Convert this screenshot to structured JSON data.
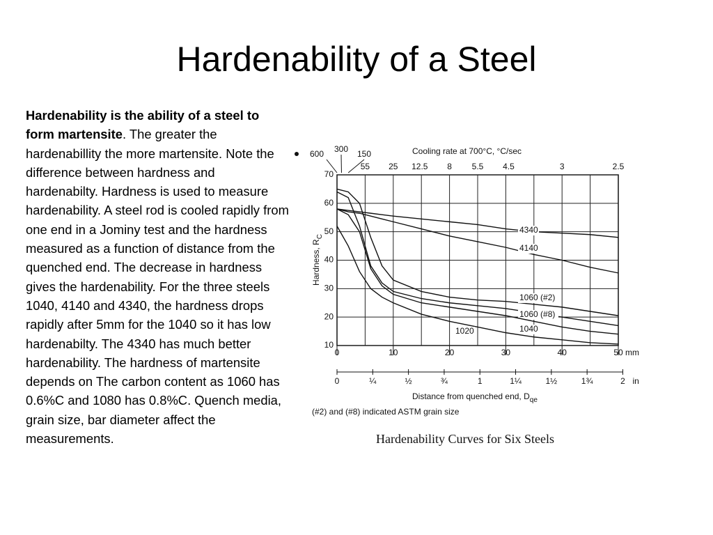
{
  "title": "Hardenability of a Steel",
  "body": {
    "bold": "Hardenability is the ability of a steel to form martensite",
    "paragraphs": [
      ". The greater the hardenabillity the more martensite. Note the difference between hardness and hardenabilty. Hardness is used to measure hardenability. A steel rod is cooled rapidly from one end in a Jominy test and the hardness measured as a function of distance from the quenched end. The decrease in hardness gives the hardenability. For the three steels",
      "1040, 4140 and 4340, the hardness drops rapidly after 5mm for the 1040 so it has low hardenabilty. The 4340 has much better hardenability. The hardness of martensite depends on The carbon content as 1060 has 0.6%C and 1080 has 0.8%C. Quench media, grain size, bar diameter affect  the measurements."
    ]
  },
  "chart_data": {
    "type": "line",
    "caption": "Hardenability Curves for Six Steels",
    "note": "(#2) and (#8) indicated ASTM grain size",
    "y_label": "Hardness, R",
    "y_label_sub": "C",
    "x_label": "Distance from quenched end, D",
    "x_label_sub": "qe",
    "x_unit": "mm",
    "x": [
      0,
      2,
      4,
      6,
      8,
      10,
      15,
      20,
      25,
      30,
      35,
      40,
      45,
      50
    ],
    "series": [
      {
        "name": "4340",
        "color": "#111111",
        "values": [
          58,
          57.5,
          57,
          56.5,
          56,
          55.5,
          54.5,
          53.5,
          52.5,
          51,
          50,
          49.5,
          49,
          48
        ]
      },
      {
        "name": "4140",
        "color": "#111111",
        "values": [
          58,
          57,
          56.5,
          55.5,
          54.5,
          53.5,
          51,
          48.5,
          46.5,
          44.5,
          42,
          40,
          37.5,
          35.5
        ]
      },
      {
        "name": "1060 (#2)",
        "color": "#111111",
        "values": [
          65,
          64,
          60,
          48,
          38,
          33,
          29,
          27,
          26,
          25.5,
          24.5,
          23.5,
          22,
          20.5
        ]
      },
      {
        "name": "1060 (#8)",
        "color": "#111111",
        "values": [
          64,
          62,
          52,
          38,
          32,
          29,
          26.5,
          25,
          24,
          23,
          21.5,
          20,
          18.5,
          17
        ]
      },
      {
        "name": "1040",
        "color": "#111111",
        "values": [
          58,
          56,
          50,
          37,
          31,
          28,
          25,
          23.5,
          22,
          20.5,
          18.5,
          16.5,
          15,
          14
        ]
      },
      {
        "name": "1020",
        "color": "#111111",
        "values": [
          52,
          45,
          36,
          30,
          27,
          25,
          21,
          18.5,
          16.5,
          14.5,
          13,
          12,
          11,
          10.5
        ]
      }
    ],
    "xlim": [
      0,
      50
    ],
    "xticks": [
      0,
      10,
      20,
      30,
      40,
      50
    ],
    "x_gridlines": [
      5,
      10,
      15,
      20,
      25,
      30,
      35,
      40,
      45
    ],
    "ylim": [
      10,
      70
    ],
    "yticks": [
      10,
      20,
      30,
      40,
      50,
      60,
      70
    ],
    "grid": true,
    "inch_axis": {
      "unit": "in",
      "ticks": [
        {
          "value": 0,
          "label": "0"
        },
        {
          "value": 0.25,
          "label": "¼"
        },
        {
          "value": 0.5,
          "label": "½"
        },
        {
          "value": 0.75,
          "label": "¾"
        },
        {
          "value": 1,
          "label": "1"
        },
        {
          "value": 1.25,
          "label": "1¼"
        },
        {
          "value": 1.5,
          "label": "1½"
        },
        {
          "value": 1.75,
          "label": "1¾"
        },
        {
          "value": 2,
          "label": "2"
        }
      ]
    },
    "cooling_axis": {
      "label": "Cooling rate at 700°C, °C/sec",
      "values": [
        600,
        300,
        150,
        55,
        25,
        12.5,
        8,
        5.5,
        4.5,
        3,
        2.5
      ],
      "positions": [
        0,
        0.8,
        2,
        5,
        10,
        14.7,
        20,
        25,
        30.5,
        40,
        50
      ]
    }
  }
}
